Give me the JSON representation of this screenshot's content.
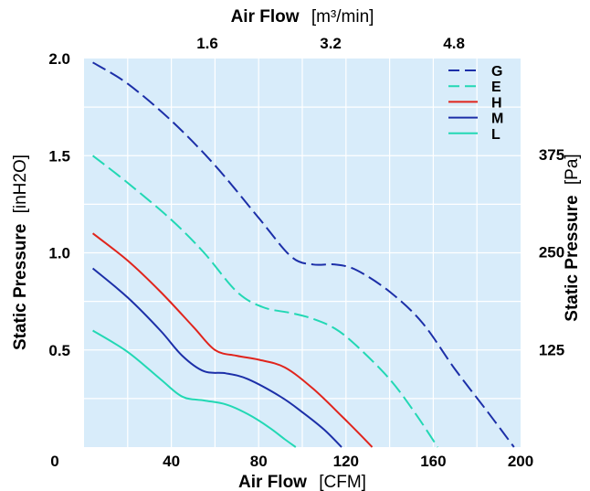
{
  "chart_data": {
    "type": "line",
    "xlabel": "Air Flow",
    "xlabel_unit": "[CFM]",
    "ylabel": "Static Pressure",
    "ylabel_unit": "[inH2O]",
    "x2label": "Air Flow",
    "x2label_unit": "[m³/min]",
    "y2label": "Static Pressure",
    "y2label_unit": "[Pa]",
    "xlim": [
      0,
      200
    ],
    "ylim": [
      0,
      2.0
    ],
    "x_ticks": [
      {
        "value": 40,
        "label": "40"
      },
      {
        "value": 80,
        "label": "80"
      },
      {
        "value": 120,
        "label": "120"
      },
      {
        "value": 160,
        "label": "160"
      },
      {
        "value": 200,
        "label": "200"
      }
    ],
    "x_origin_label": "0",
    "y_ticks": [
      {
        "value": 0.5,
        "label": "0.5"
      },
      {
        "value": 1.0,
        "label": "1.0"
      },
      {
        "value": 1.5,
        "label": "1.5"
      },
      {
        "value": 2.0,
        "label": "2.0"
      }
    ],
    "x2_ticks": [
      {
        "value": 56.5,
        "label": "1.6"
      },
      {
        "value": 113,
        "label": "3.2"
      },
      {
        "value": 169.5,
        "label": "4.8"
      }
    ],
    "y2_ticks": [
      {
        "value": 0.502,
        "label": "125"
      },
      {
        "value": 1.004,
        "label": "250"
      },
      {
        "value": 1.506,
        "label": "375"
      }
    ],
    "grid": true,
    "plot_background": "#d8ecfa",
    "legend_position": "top-right",
    "series": [
      {
        "name": "G",
        "color": "#1c2fa8",
        "dashed": true,
        "points": [
          [
            4,
            1.98
          ],
          [
            20,
            1.87
          ],
          [
            40,
            1.68
          ],
          [
            60,
            1.45
          ],
          [
            80,
            1.18
          ],
          [
            95,
            0.98
          ],
          [
            105,
            0.94
          ],
          [
            115,
            0.94
          ],
          [
            125,
            0.91
          ],
          [
            140,
            0.8
          ],
          [
            155,
            0.64
          ],
          [
            170,
            0.4
          ],
          [
            185,
            0.18
          ],
          [
            197,
            0.0
          ]
        ]
      },
      {
        "name": "E",
        "color": "#22d8b4",
        "dashed": true,
        "points": [
          [
            4,
            1.5
          ],
          [
            20,
            1.36
          ],
          [
            40,
            1.17
          ],
          [
            55,
            1.0
          ],
          [
            70,
            0.8
          ],
          [
            82,
            0.72
          ],
          [
            95,
            0.69
          ],
          [
            105,
            0.66
          ],
          [
            115,
            0.61
          ],
          [
            125,
            0.52
          ],
          [
            140,
            0.35
          ],
          [
            152,
            0.17
          ],
          [
            162,
            0.0
          ]
        ]
      },
      {
        "name": "H",
        "color": "#e0241c",
        "dashed": false,
        "points": [
          [
            4,
            1.1
          ],
          [
            20,
            0.96
          ],
          [
            35,
            0.8
          ],
          [
            50,
            0.62
          ],
          [
            60,
            0.5
          ],
          [
            70,
            0.47
          ],
          [
            80,
            0.45
          ],
          [
            92,
            0.41
          ],
          [
            105,
            0.3
          ],
          [
            118,
            0.16
          ],
          [
            126,
            0.07
          ],
          [
            132,
            0.0
          ]
        ]
      },
      {
        "name": "M",
        "color": "#1c2fa8",
        "dashed": false,
        "points": [
          [
            4,
            0.92
          ],
          [
            20,
            0.77
          ],
          [
            35,
            0.6
          ],
          [
            45,
            0.47
          ],
          [
            55,
            0.39
          ],
          [
            65,
            0.38
          ],
          [
            75,
            0.35
          ],
          [
            90,
            0.26
          ],
          [
            100,
            0.18
          ],
          [
            110,
            0.09
          ],
          [
            118,
            0.0
          ]
        ]
      },
      {
        "name": "L",
        "color": "#22d8b4",
        "dashed": false,
        "points": [
          [
            4,
            0.6
          ],
          [
            20,
            0.49
          ],
          [
            35,
            0.35
          ],
          [
            45,
            0.26
          ],
          [
            55,
            0.24
          ],
          [
            65,
            0.22
          ],
          [
            75,
            0.17
          ],
          [
            85,
            0.1
          ],
          [
            92,
            0.04
          ],
          [
            97,
            0.0
          ]
        ]
      }
    ]
  }
}
